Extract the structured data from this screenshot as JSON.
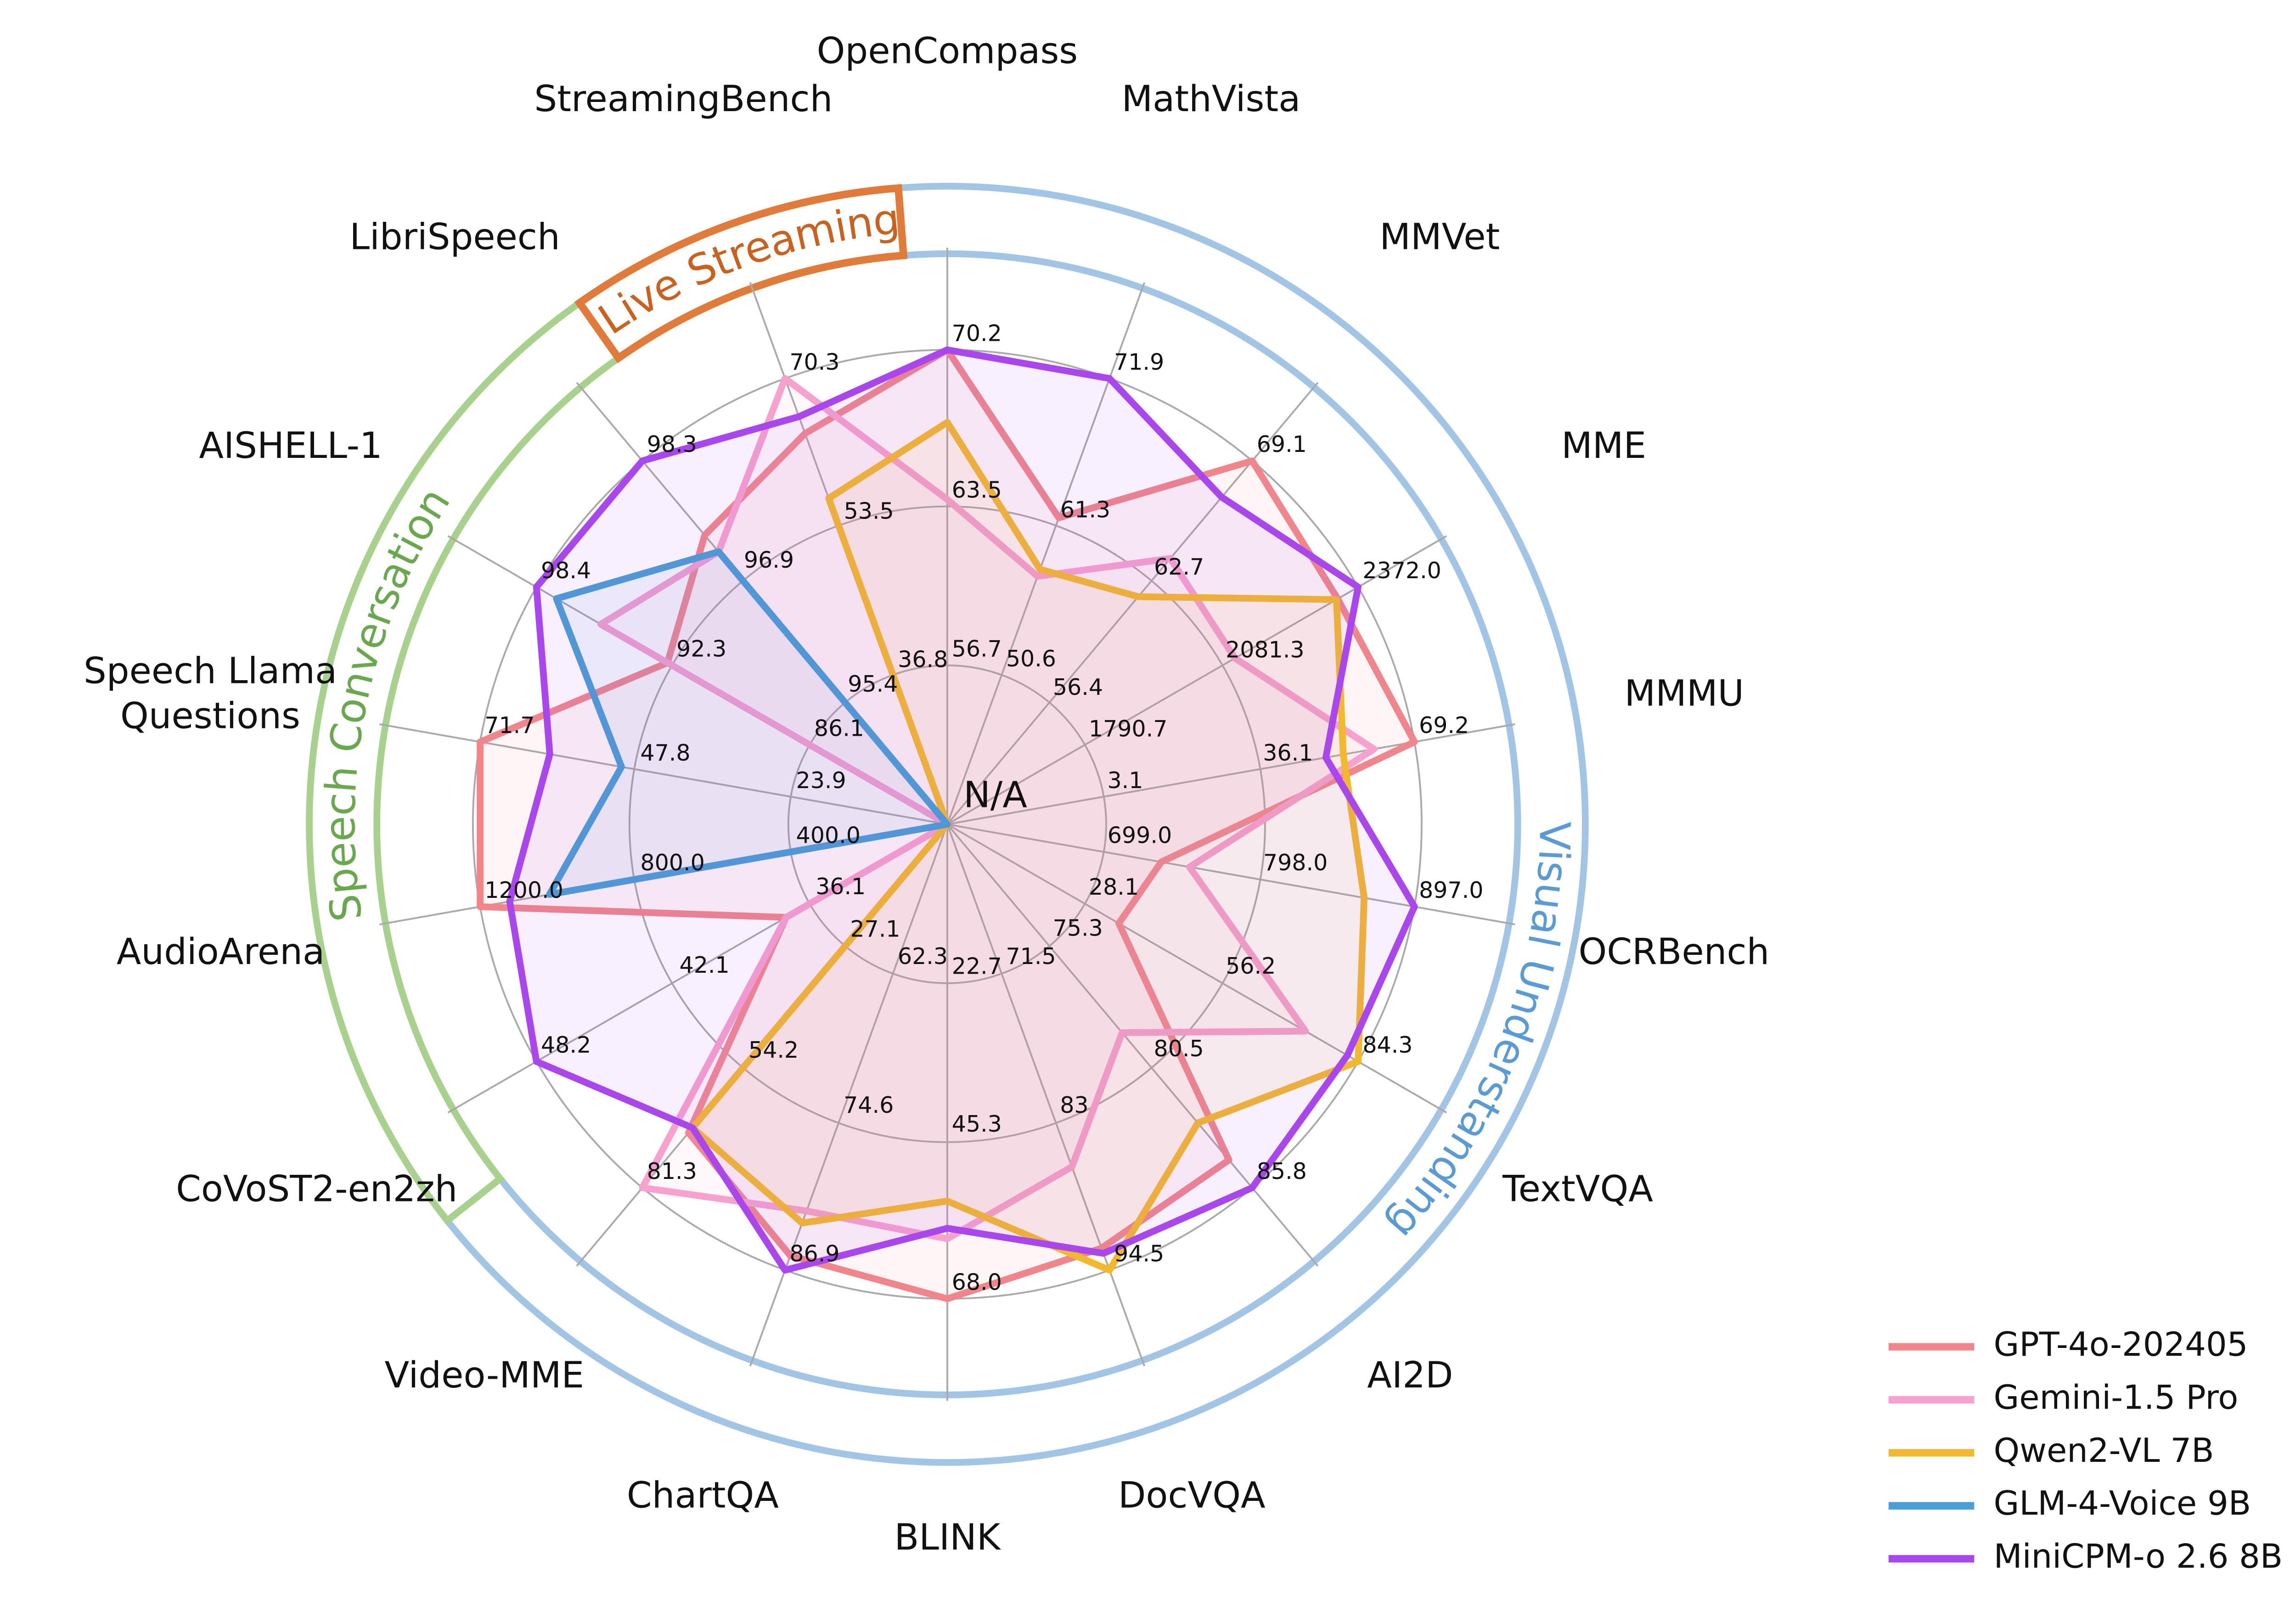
{
  "chart_data": {
    "type": "radar",
    "categories": [
      "OpenCompass",
      "MathVista",
      "MMVet",
      "MME",
      "MMMU",
      "OCRBench",
      "TextVQA",
      "AI2D",
      "DocVQA",
      "BLINK",
      "ChartQA",
      "Video-MME",
      "CoVoST2-en2zh",
      "AudioArena",
      "Speech Llama Questions",
      "AISHELL-1",
      "LibriSpeech",
      "StreamingBench"
    ],
    "axes": [
      {
        "lim": [
          49.9,
          70.2
        ],
        "ticks": [
          56.7,
          63.5,
          70.2
        ]
      },
      {
        "lim": [
          39.9,
          71.9
        ],
        "ticks": [
          50.6,
          61.3,
          71.9
        ]
      },
      {
        "lim": [
          50.1,
          69.1
        ],
        "ticks": [
          56.4,
          62.7,
          69.1
        ]
      },
      {
        "lim": [
          1500.1,
          2372
        ],
        "ticks": [
          1790.7,
          2081.3,
          {
            "value": 2372,
            "label": "2372.0"
          }
        ]
      },
      {
        "lim": [
          -29.9,
          69.2
        ],
        "ticks": [
          3.1,
          36.1,
          69.2
        ]
      },
      {
        "lim": [
          600,
          897
        ],
        "ticks": [
          {
            "value": 699,
            "label": "699.0"
          },
          {
            "value": 798,
            "label": "798.0"
          },
          {
            "value": 897,
            "label": "897.0"
          }
        ]
      },
      {
        "lim": [
          0,
          84.3
        ],
        "ticks": [
          28.1,
          56.2,
          84.3
        ]
      },
      {
        "lim": [
          70.1,
          85.8
        ],
        "ticks": [
          75.3,
          80.5,
          85.8
        ]
      },
      {
        "lim": [
          60,
          94.5
        ],
        "ticks": [
          71.5,
          83.0,
          94.5
        ]
      },
      {
        "lim": [
          0,
          68
        ],
        "ticks": [
          22.7,
          45.3,
          {
            "value": 68,
            "label": "68.0"
          }
        ]
      },
      {
        "lim": [
          50,
          86.9
        ],
        "ticks": [
          62.3,
          74.6,
          86.9
        ]
      },
      {
        "lim": [
          0,
          81.3
        ],
        "ticks": [
          27.1,
          54.2,
          81.3
        ]
      },
      {
        "lim": [
          30.1,
          48.2
        ],
        "ticks": [
          36.1,
          42.1,
          48.2
        ]
      },
      {
        "lim": [
          0,
          1200
        ],
        "ticks": [
          {
            "value": 400,
            "label": "400.0"
          },
          {
            "value": 800,
            "label": "800.0"
          },
          {
            "value": 1200,
            "label": "1200.0"
          }
        ]
      },
      {
        "lim": [
          0,
          71.7
        ],
        "ticks": [
          23.9,
          47.8,
          71.7
        ]
      },
      {
        "lim": [
          79.9,
          98.4
        ],
        "ticks": [
          86.1,
          92.3,
          98.4
        ]
      },
      {
        "lim": [
          93.9,
          98.3
        ],
        "ticks": [
          95.4,
          96.9,
          98.3
        ]
      },
      {
        "lim": [
          20.1,
          70.3
        ],
        "ticks": [
          36.8,
          53.5,
          70.3
        ]
      }
    ],
    "series": [
      {
        "name": "GPT-4o-202405",
        "color": "#f0868c",
        "values": [
          70.2,
          61.9,
          69.1,
          2328.7,
          69.2,
          736,
          35.2,
          84.6,
          92.8,
          68.0,
          85.7,
          69.0,
          37.2,
          1200,
          71.7,
          92.5,
          97.4,
          64.1
        ]
      },
      {
        "name": "Gemini-1.5 Pro",
        "color": "#f7a1cf",
        "values": [
          63.8,
          57.7,
          64.0,
          2110.6,
          60.6,
          754,
          73.5,
          79.1,
          86.5,
          59.4,
          82.0,
          81.3,
          37.2,
          null,
          null,
          95.5,
          97.2,
          70.3
        ]
      },
      {
        "name": "Qwen2-VL 7B",
        "color": "#f2b82e",
        "values": [
          67.1,
          58.2,
          62.0,
          2326,
          54.1,
          865,
          84.3,
          83.0,
          94.5,
          54.0,
          83.0,
          67.9,
          null,
          null,
          null,
          null,
          null,
          56.8
        ]
      },
      {
        "name": "GLM-4-Voice 9B",
        "color": "#4a9fd6",
        "values": [
          null,
          null,
          null,
          null,
          null,
          null,
          null,
          null,
          null,
          null,
          null,
          null,
          null,
          1022,
          50.0,
          97.5,
          97.2,
          null
        ]
      },
      {
        "name": "MiniCPM-o 2.6 8B",
        "color": "#a946ec",
        "values": [
          70.2,
          71.9,
          67.2,
          2372.0,
          50.4,
          897,
          82.1,
          85.8,
          93.2,
          57.9,
          86.9,
          67.9,
          48.2,
          1124,
          61.0,
          98.4,
          98.3,
          66.0
        ]
      }
    ],
    "center_label": "N/A",
    "groups": [
      {
        "label": "Visual Understanding",
        "color": "#a3c5e5",
        "label_color": "#5b9bd5"
      },
      {
        "label": "Speech Conversation",
        "color": "#a8d18d",
        "label_color": "#6aa84f"
      },
      {
        "label": "Live Streaming",
        "color": "#e07b39",
        "label_color": "#c8621e"
      }
    ],
    "grid": true,
    "legend": "lower right"
  }
}
